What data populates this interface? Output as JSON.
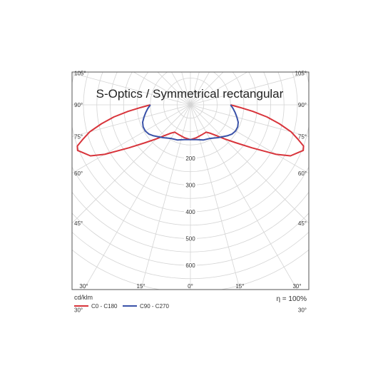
{
  "chart_data": {
    "type": "polar",
    "title": "S-Optics / Symmetrical rectangular",
    "unit_label": "cd/klm",
    "efficiency_label": "η = 100%",
    "radial_ticks": [
      200,
      300,
      400,
      500,
      600
    ],
    "radial_max": 740,
    "angle_ticks": [
      {
        "side": "left",
        "label": "105°",
        "deg": 105
      },
      {
        "side": "left",
        "label": "90°",
        "deg": 90
      },
      {
        "side": "left",
        "label": "75°",
        "deg": 75
      },
      {
        "side": "left",
        "label": "60°",
        "deg": 60
      },
      {
        "side": "left",
        "label": "45°",
        "deg": 45
      },
      {
        "side": "left",
        "label": "30°",
        "deg": 30
      },
      {
        "side": "right",
        "label": "105°",
        "deg": 105
      },
      {
        "side": "right",
        "label": "90°",
        "deg": 90
      },
      {
        "side": "right",
        "label": "75°",
        "deg": 75
      },
      {
        "side": "right",
        "label": "60°",
        "deg": 60
      },
      {
        "side": "right",
        "label": "45°",
        "deg": 45
      },
      {
        "side": "right",
        "label": "30°",
        "deg": 30
      }
    ],
    "bottom_angle_ticks": [
      {
        "label": "30°",
        "deg": -30
      },
      {
        "label": "15°",
        "deg": -15
      },
      {
        "label": "0°",
        "deg": 0
      },
      {
        "label": "15°",
        "deg": 15
      },
      {
        "label": "30°",
        "deg": 30
      }
    ],
    "series": [
      {
        "name": "C0 - C180",
        "color": "#d8343b",
        "points": [
          [
            0,
            130
          ],
          [
            10,
            125
          ],
          [
            20,
            120
          ],
          [
            30,
            118
          ],
          [
            35,
            130
          ],
          [
            40,
            150
          ],
          [
            45,
            180
          ],
          [
            50,
            220
          ],
          [
            55,
            280
          ],
          [
            60,
            370
          ],
          [
            63,
            420
          ],
          [
            66,
            440
          ],
          [
            68,
            455
          ],
          [
            70,
            450
          ],
          [
            72,
            425
          ],
          [
            75,
            390
          ],
          [
            78,
            340
          ],
          [
            81,
            290
          ],
          [
            84,
            235
          ],
          [
            87,
            185
          ],
          [
            90,
            150
          ]
        ]
      },
      {
        "name": "C90 - C270",
        "color": "#3a52a8",
        "points": [
          [
            0,
            130
          ],
          [
            10,
            132
          ],
          [
            20,
            140
          ],
          [
            30,
            145
          ],
          [
            40,
            160
          ],
          [
            50,
            180
          ],
          [
            55,
            190
          ],
          [
            60,
            195
          ],
          [
            65,
            195
          ],
          [
            70,
            190
          ],
          [
            75,
            180
          ],
          [
            80,
            170
          ],
          [
            85,
            160
          ],
          [
            90,
            150
          ]
        ]
      }
    ]
  }
}
